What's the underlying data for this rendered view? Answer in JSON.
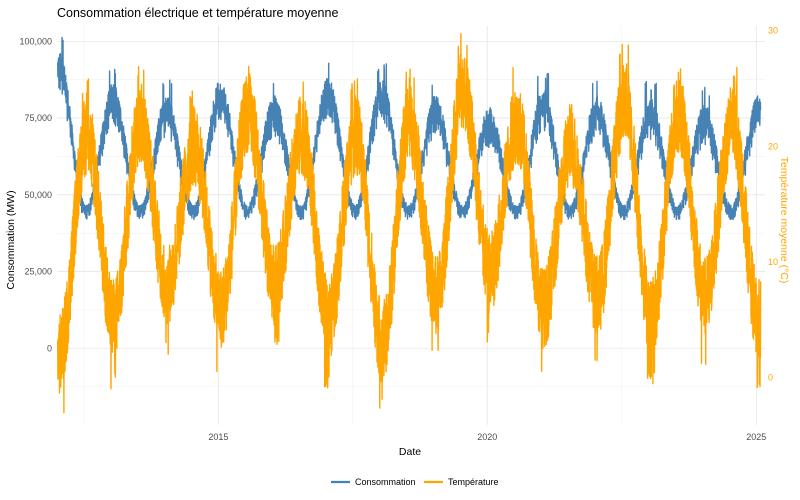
{
  "chart_data": {
    "type": "line",
    "title": "Consommation électrique et température moyenne",
    "xlabel": "Date",
    "ylabel_left": "Consommation (MW)",
    "ylabel_right": "Température moyenne (°C)",
    "x_range": [
      "2012-01-01",
      "2025-03-01"
    ],
    "x_ticks": [
      {
        "date": "2015-01-01",
        "label": "2015"
      },
      {
        "date": "2020-01-01",
        "label": "2020"
      },
      {
        "date": "2025-01-01",
        "label": "2025"
      }
    ],
    "y_left": {
      "range": [
        -25000,
        105000
      ],
      "ticks": [
        0,
        25000,
        50000,
        75000,
        100000
      ],
      "tick_labels": [
        "0",
        "25,000",
        "50,000",
        "75,000",
        "100,000"
      ]
    },
    "y_right": {
      "range": [
        -4.1,
        30.4
      ],
      "ticks": [
        0,
        10,
        20,
        30
      ],
      "tick_labels": [
        "0",
        "10",
        "20",
        "30"
      ]
    },
    "grid": true,
    "legend_position": "bottom",
    "series": [
      {
        "name": "Consommation",
        "axis": "left",
        "color": "#4682B4",
        "frequency": "daily",
        "seasonal_envelope": {
          "winter_peak_typical": 85000,
          "winter_peak_max": 102000,
          "summer_low_typical": 45000,
          "summer_low_min": 42000
        },
        "winter_peaks": [
          {
            "winter": "2011-2012",
            "value": 102000
          },
          {
            "winter": "2012-2013",
            "value": 92000
          },
          {
            "winter": "2013-2014",
            "value": 88000
          },
          {
            "winter": "2014-2015",
            "value": 93000
          },
          {
            "winter": "2015-2016",
            "value": 88000
          },
          {
            "winter": "2016-2017",
            "value": 94000
          },
          {
            "winter": "2017-2018",
            "value": 93000
          },
          {
            "winter": "2018-2019",
            "value": 88000
          },
          {
            "winter": "2019-2020",
            "value": 84000
          },
          {
            "winter": "2020-2021",
            "value": 90000
          },
          {
            "winter": "2021-2022",
            "value": 88000
          },
          {
            "winter": "2022-2023",
            "value": 87000
          },
          {
            "winter": "2023-2024",
            "value": 85000
          },
          {
            "winter": "2024-2025",
            "value": 88000
          }
        ]
      },
      {
        "name": "Température",
        "axis": "right",
        "color": "#FFA500",
        "frequency": "daily",
        "seasonal_envelope": {
          "summer_peak_typical": 26,
          "summer_peak_max": 30,
          "winter_low_typical": 2,
          "winter_low_min": -4
        },
        "summer_peaks": [
          {
            "year": 2012,
            "value": 26
          },
          {
            "year": 2013,
            "value": 27
          },
          {
            "year": 2014,
            "value": 25
          },
          {
            "year": 2015,
            "value": 28
          },
          {
            "year": 2016,
            "value": 26
          },
          {
            "year": 2017,
            "value": 26
          },
          {
            "year": 2018,
            "value": 27
          },
          {
            "year": 2019,
            "value": 30
          },
          {
            "year": 2020,
            "value": 27
          },
          {
            "year": 2021,
            "value": 25
          },
          {
            "year": 2022,
            "value": 29
          },
          {
            "year": 2023,
            "value": 28
          },
          {
            "year": 2024,
            "value": 27
          }
        ],
        "winter_lows": [
          {
            "winter": "2011-2012",
            "value": -4
          },
          {
            "winter": "2012-2013",
            "value": -1
          },
          {
            "winter": "2013-2014",
            "value": 2
          },
          {
            "winter": "2014-2015",
            "value": 0
          },
          {
            "winter": "2015-2016",
            "value": 2
          },
          {
            "winter": "2016-2017",
            "value": -1
          },
          {
            "winter": "2017-2018",
            "value": -3
          },
          {
            "winter": "2018-2019",
            "value": 1
          },
          {
            "winter": "2019-2020",
            "value": 3
          },
          {
            "winter": "2020-2021",
            "value": 0
          },
          {
            "winter": "2021-2022",
            "value": 1
          },
          {
            "winter": "2022-2023",
            "value": -1
          },
          {
            "winter": "2023-2024",
            "value": 1
          },
          {
            "winter": "2024-2025",
            "value": -1
          }
        ]
      }
    ]
  }
}
